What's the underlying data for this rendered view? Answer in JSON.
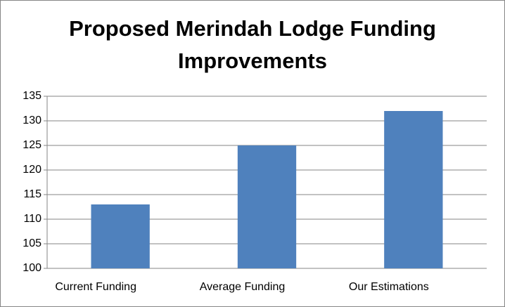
{
  "chart_data": {
    "type": "bar",
    "title": "Proposed Merindah Lodge Funding Improvements",
    "categories": [
      "Current Funding",
      "Average Funding",
      "Our Estimations"
    ],
    "values": [
      113,
      125,
      132
    ],
    "color": "#4f81bd",
    "ylim": [
      100,
      135
    ],
    "yticks": [
      100,
      105,
      110,
      115,
      120,
      125,
      130,
      135
    ],
    "grid": true
  }
}
